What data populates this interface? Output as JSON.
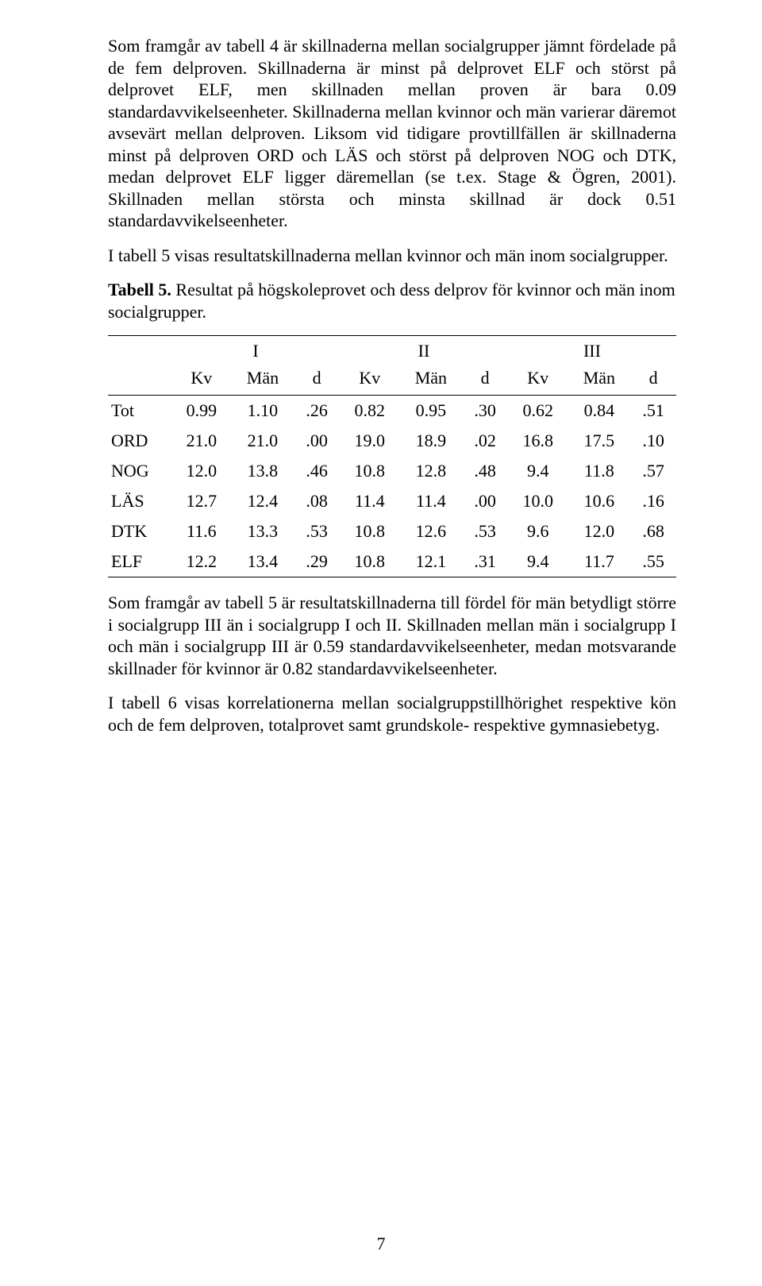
{
  "paragraphs": {
    "p1": "Som framgår av tabell 4 är skillnaderna mellan socialgrupper jämnt fördelade på de fem delproven. Skillnaderna är minst på delprovet ELF och störst på delprovet ELF, men skillnaden mellan proven är bara 0.09 standardavvikelseenheter. Skillnaderna mellan kvinnor och män varierar däremot avsevärt mellan delproven. Liksom vid tidigare provtillfällen är skillnaderna minst på delproven ORD och LÄS och störst på delproven NOG och DTK, medan delprovet ELF ligger däremellan (se t.ex. Stage & Ögren, 2001). Skillnaden mellan största och minsta skillnad är dock 0.51 standardavvikelseenheter.",
    "p2": "I tabell 5 visas resultatskillnaderna mellan kvinnor och män inom socialgrupper.",
    "p3_label": "Tabell 5.",
    "p3_rest": " Resultat på högskoleprovet och dess delprov för kvinnor och män inom socialgrupper.",
    "p4": "Som framgår av tabell 5 är resultatskillnaderna till fördel för män betydligt större i socialgrupp III än i socialgrupp I och II. Skillnaden mellan män i socialgrupp I och män i socialgrupp III är 0.59 standardavvikelseenheter, medan motsvarande skillnader för kvinnor är 0.82 standardavvikelseenheter.",
    "p5": "I tabell 6 visas korrelationerna mellan socialgruppstillhörighet respektive kön och de fem delproven, totalprovet samt grundskole- respektive gymnasiebetyg."
  },
  "table": {
    "groups": [
      "I",
      "II",
      "III"
    ],
    "subcols": [
      "Kv",
      "Män",
      "d"
    ],
    "rows": [
      {
        "label": "Tot",
        "cells": [
          "0.99",
          "1.10",
          ".26",
          "0.82",
          "0.95",
          ".30",
          "0.62",
          "0.84",
          ".51"
        ]
      },
      {
        "label": "ORD",
        "cells": [
          "21.0",
          "21.0",
          ".00",
          "19.0",
          "18.9",
          ".02",
          "16.8",
          "17.5",
          ".10"
        ]
      },
      {
        "label": "NOG",
        "cells": [
          "12.0",
          "13.8",
          ".46",
          "10.8",
          "12.8",
          ".48",
          "9.4",
          "11.8",
          ".57"
        ]
      },
      {
        "label": "LÄS",
        "cells": [
          "12.7",
          "12.4",
          ".08",
          "11.4",
          "11.4",
          ".00",
          "10.0",
          "10.6",
          ".16"
        ]
      },
      {
        "label": "DTK",
        "cells": [
          "11.6",
          "13.3",
          ".53",
          "10.8",
          "12.6",
          ".53",
          "9.6",
          "12.0",
          ".68"
        ]
      },
      {
        "label": "ELF",
        "cells": [
          "12.2",
          "13.4",
          ".29",
          "10.8",
          "12.1",
          ".31",
          "9.4",
          "11.7",
          ".55"
        ]
      }
    ]
  },
  "page_number": "7"
}
